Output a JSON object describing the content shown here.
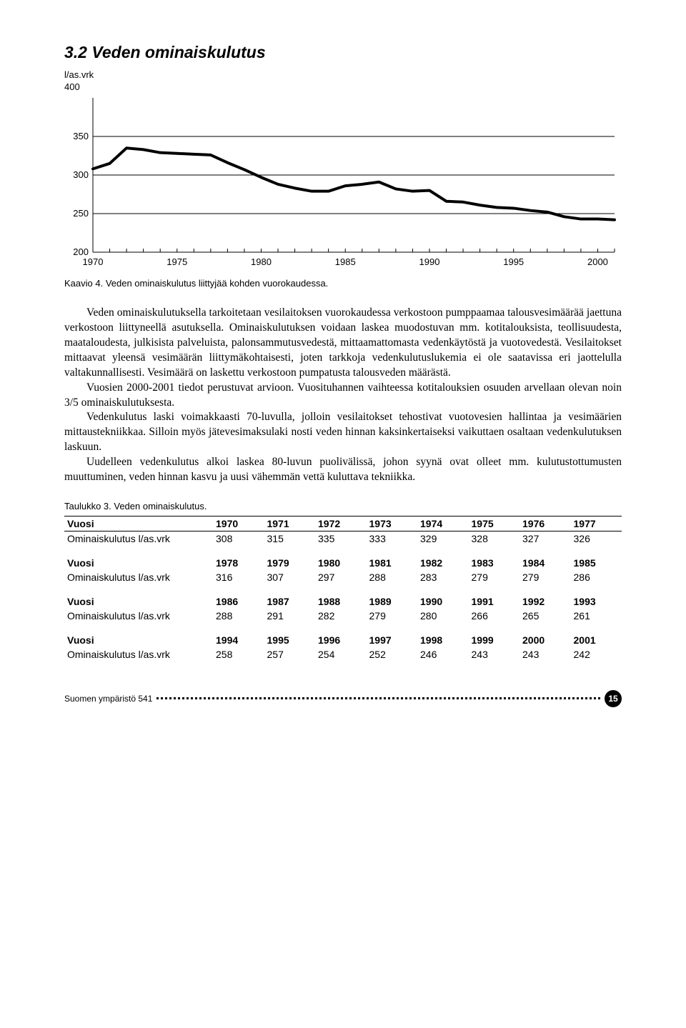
{
  "heading": "3.2 Veden ominaiskulutus",
  "chart": {
    "type": "line",
    "y_label": "l/as.vrk",
    "y_top_value": "400",
    "ylim": [
      200,
      400
    ],
    "yticks": [
      200,
      250,
      300,
      350,
      400
    ],
    "xlim": [
      1970,
      2001
    ],
    "xticks_major": [
      1970,
      1975,
      1980,
      1985,
      1990,
      1995,
      2000
    ],
    "line_color": "#000000",
    "line_width": 4,
    "grid_color": "#000000",
    "background_color": "#ffffff",
    "axis_fontsize": 13,
    "series": [
      {
        "x": 1970,
        "y": 308
      },
      {
        "x": 1971,
        "y": 315
      },
      {
        "x": 1972,
        "y": 335
      },
      {
        "x": 1973,
        "y": 333
      },
      {
        "x": 1974,
        "y": 329
      },
      {
        "x": 1975,
        "y": 328
      },
      {
        "x": 1976,
        "y": 327
      },
      {
        "x": 1977,
        "y": 326
      },
      {
        "x": 1978,
        "y": 316
      },
      {
        "x": 1979,
        "y": 307
      },
      {
        "x": 1980,
        "y": 297
      },
      {
        "x": 1981,
        "y": 288
      },
      {
        "x": 1982,
        "y": 283
      },
      {
        "x": 1983,
        "y": 279
      },
      {
        "x": 1984,
        "y": 279
      },
      {
        "x": 1985,
        "y": 286
      },
      {
        "x": 1986,
        "y": 288
      },
      {
        "x": 1987,
        "y": 291
      },
      {
        "x": 1988,
        "y": 282
      },
      {
        "x": 1989,
        "y": 279
      },
      {
        "x": 1990,
        "y": 280
      },
      {
        "x": 1991,
        "y": 266
      },
      {
        "x": 1992,
        "y": 265
      },
      {
        "x": 1993,
        "y": 261
      },
      {
        "x": 1994,
        "y": 258
      },
      {
        "x": 1995,
        "y": 257
      },
      {
        "x": 1996,
        "y": 254
      },
      {
        "x": 1997,
        "y": 252
      },
      {
        "x": 1998,
        "y": 246
      },
      {
        "x": 1999,
        "y": 243
      },
      {
        "x": 2000,
        "y": 243
      },
      {
        "x": 2001,
        "y": 242
      }
    ]
  },
  "caption": "Kaavio 4. Veden ominaiskulutus liittyjää kohden vuorokaudessa.",
  "paragraphs": [
    "Veden ominaiskulutuksella tarkoitetaan vesilaitoksen vuorokaudessa verkostoon pumppaamaa talousvesimäärää jaettuna verkostoon liittyneellä asutuksella. Ominaiskulutuksen voidaan laskea muodostuvan mm. kotitalouksista, teollisuudesta, maataloudesta, julkisista palveluista, palonsammutusvedestä, mittaamattomasta vedenkäytöstä ja vuotovedestä. Vesilaitokset mittaavat yleensä vesimäärän liittymäkohtaisesti, joten tarkkoja vedenkulutuslukemia ei ole saatavissa eri jaottelulla valtakunnallisesti. Vesimäärä on laskettu verkostoon pumpatusta talousveden määrästä.",
    "Vuosien 2000-2001 tiedot perustuvat arvioon. Vuosituhannen vaihteessa kotitalouksien osuuden arvellaan olevan noin 3/5 ominaiskulutuksesta.",
    "Vedenkulutus laski voimakkaasti 70-luvulla, jolloin vesilaitokset tehostivat vuotovesien hallintaa ja vesimäärien mittaustekniikkaa. Silloin myös jätevesimaksulaki nosti veden hinnan kaksinkertaiseksi vaikuttaen osaltaan vedenkulutuksen laskuun.",
    "Uudelleen vedenkulutus alkoi laskea 80-luvun puolivälissä, johon syynä ovat olleet mm. kulutustottumusten muuttuminen, veden hinnan kasvu ja uusi vähemmän vettä kuluttava tekniikka."
  ],
  "table_caption": "Taulukko 3. Veden ominaiskulutus.",
  "table": {
    "row_labels": {
      "year": "Vuosi",
      "value": "Ominaiskulutus l/as.vrk"
    },
    "blocks": [
      {
        "years": [
          "1970",
          "1971",
          "1972",
          "1973",
          "1974",
          "1975",
          "1976",
          "1977"
        ],
        "values": [
          "308",
          "315",
          "335",
          "333",
          "329",
          "328",
          "327",
          "326"
        ]
      },
      {
        "years": [
          "1978",
          "1979",
          "1980",
          "1981",
          "1982",
          "1983",
          "1984",
          "1985"
        ],
        "values": [
          "316",
          "307",
          "297",
          "288",
          "283",
          "279",
          "279",
          "286"
        ]
      },
      {
        "years": [
          "1986",
          "1987",
          "1988",
          "1989",
          "1990",
          "1991",
          "1992",
          "1993"
        ],
        "values": [
          "288",
          "291",
          "282",
          "279",
          "280",
          "266",
          "265",
          "261"
        ]
      },
      {
        "years": [
          "1994",
          "1995",
          "1996",
          "1997",
          "1998",
          "1999",
          "2000",
          "2001"
        ],
        "values": [
          "258",
          "257",
          "254",
          "252",
          "246",
          "243",
          "243",
          "242"
        ]
      }
    ]
  },
  "footer": {
    "publication": "Suomen ympäristö 541",
    "page": "15"
  }
}
